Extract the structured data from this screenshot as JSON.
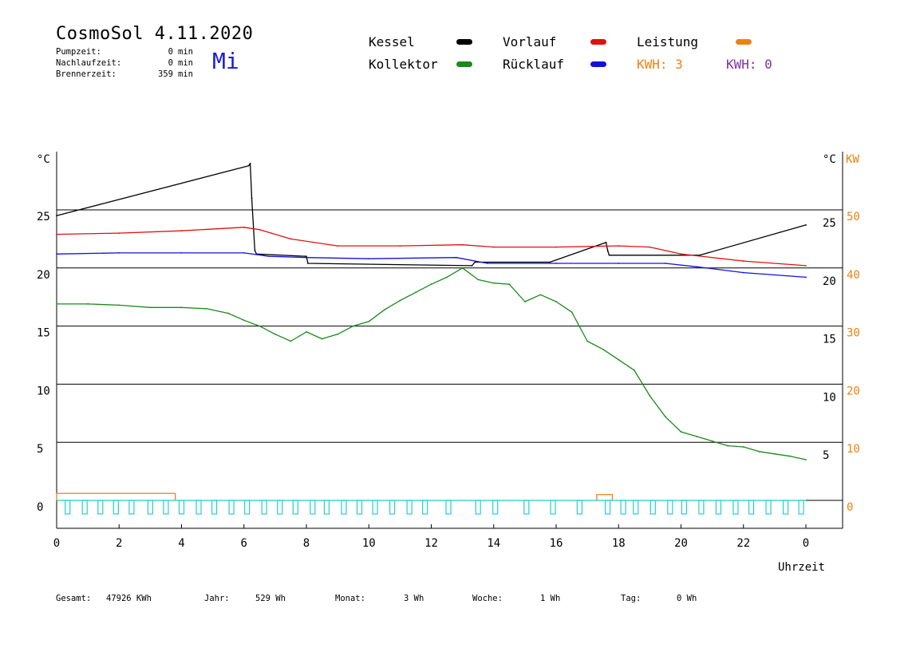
{
  "header": {
    "title": "CosmoSol 4.11.2020",
    "weekday": "Mi",
    "stats": [
      {
        "label": "Pumpzeit:",
        "value": "0",
        "unit": "min"
      },
      {
        "label": "Nachlaufzeit:",
        "value": "0",
        "unit": "min"
      },
      {
        "label": "Brennerzeit:",
        "value": "359",
        "unit": "min"
      }
    ]
  },
  "legend": {
    "kessel": "Kessel",
    "kollektor": "Kollektor",
    "vorlauf": "Vorlauf",
    "ruecklauf": "Rücklauf",
    "leistung": "Leistung",
    "kwh1": "KWH: 3",
    "kwh2": "KWH: 0",
    "colors": {
      "kessel": "#000000",
      "kollektor": "#1a8a1a",
      "vorlauf": "#e01010",
      "ruecklauf": "#1010e0",
      "leistung": "#f08010",
      "kwh1": "#f08010",
      "kwh2": "#8030a0",
      "pump": "#20d0d0"
    }
  },
  "chart_data": {
    "type": "line",
    "xlabel": "Uhrzeit",
    "ylabel_left": "°C",
    "ylabel_right_temp": "°C",
    "ylabel_right_power": "KW",
    "xlim": [
      0,
      24
    ],
    "ylim": [
      -2,
      29
    ],
    "x_ticks": [
      "0",
      "2",
      "4",
      "6",
      "8",
      "10",
      "12",
      "14",
      "16",
      "18",
      "20",
      "22",
      "0"
    ],
    "y_ticks_left": [
      "25",
      "20",
      "15",
      "10",
      "5",
      "0"
    ],
    "y_ticks_right_temp": [
      "25",
      "20",
      "15",
      "10",
      "5"
    ],
    "y_ticks_right_power": [
      "50",
      "40",
      "30",
      "20",
      "10",
      "0"
    ],
    "grid": "horizontal",
    "series": [
      {
        "name": "Kessel",
        "color": "#000000",
        "x": [
          0,
          6.15,
          6.2,
          6.25,
          6.35,
          6.4,
          8.0,
          8.05,
          13.3,
          13.4,
          15.8,
          17.6,
          17.65,
          17.7,
          20.6,
          24.0
        ],
        "y": [
          24.5,
          28.8,
          29.0,
          26.0,
          21.5,
          21.2,
          21.0,
          20.4,
          20.2,
          20.5,
          20.5,
          22.2,
          21.5,
          21.1,
          21.1,
          23.7
        ]
      },
      {
        "name": "Vorlauf",
        "color": "#e01010",
        "x": [
          0,
          2,
          4,
          6,
          6.5,
          7.5,
          9,
          11,
          13,
          14,
          16,
          18,
          19,
          20,
          22,
          24
        ],
        "y": [
          22.9,
          23.0,
          23.2,
          23.5,
          23.3,
          22.5,
          21.9,
          21.9,
          22.0,
          21.8,
          21.8,
          21.9,
          21.8,
          21.2,
          20.6,
          20.2
        ]
      },
      {
        "name": "Rücklauf",
        "color": "#1010e0",
        "x": [
          0,
          2,
          4,
          6,
          6.8,
          8,
          10,
          12.8,
          13.8,
          16,
          18,
          19.5,
          20.5,
          22,
          24
        ],
        "y": [
          21.2,
          21.3,
          21.3,
          21.3,
          21.0,
          20.9,
          20.8,
          20.9,
          20.4,
          20.4,
          20.4,
          20.4,
          20.1,
          19.6,
          19.2
        ]
      },
      {
        "name": "Kollektor",
        "color": "#1a8a1a",
        "x": [
          0,
          1,
          2,
          3,
          4,
          4.8,
          5.5,
          6,
          6.5,
          7,
          7.5,
          8,
          8.5,
          9,
          9.5,
          10,
          10.5,
          11,
          11.5,
          12,
          12.5,
          13,
          13.5,
          14,
          14.5,
          15,
          15.5,
          16,
          16.5,
          17,
          17.5,
          18,
          18.5,
          19,
          19.5,
          20,
          20.5,
          21,
          21.5,
          22,
          22.5,
          23,
          23.5,
          24
        ],
        "y": [
          16.9,
          16.9,
          16.8,
          16.6,
          16.6,
          16.5,
          16.1,
          15.5,
          15.0,
          14.3,
          13.7,
          14.5,
          13.9,
          14.3,
          15.0,
          15.4,
          16.4,
          17.2,
          17.9,
          18.6,
          19.2,
          20.0,
          19.0,
          18.7,
          18.6,
          17.1,
          17.7,
          17.1,
          16.2,
          13.7,
          13.0,
          12.1,
          11.2,
          9.0,
          7.2,
          5.9,
          5.5,
          5.1,
          4.7,
          4.6,
          4.2,
          4.0,
          3.8,
          3.5
        ]
      }
    ],
    "power": {
      "name": "Leistung",
      "color": "#f08010",
      "segments": [
        {
          "from": 0,
          "to": 3.8,
          "kw": 1.2
        },
        {
          "from": 17.3,
          "to": 17.8,
          "kw": 1.0
        }
      ]
    },
    "pump_pulses_hours": [
      0.35,
      0.9,
      1.4,
      1.9,
      2.4,
      3.0,
      3.5,
      4.0,
      4.55,
      5.05,
      5.6,
      6.1,
      6.65,
      7.15,
      7.65,
      8.2,
      8.65,
      9.2,
      9.7,
      10.2,
      10.75,
      11.3,
      11.8,
      12.55,
      13.5,
      14.05,
      15.05,
      15.9,
      16.75,
      17.65,
      18.15,
      18.55,
      19.1,
      19.65,
      20.1,
      20.65,
      21.2,
      21.75,
      22.25,
      22.8,
      23.35,
      23.85
    ]
  },
  "footer": {
    "gesamt_label": "Gesamt:",
    "gesamt_value": "47926 KWh",
    "jahr_label": "Jahr:",
    "jahr_value": "529 Wh",
    "monat_label": "Monat:",
    "monat_value": "3 Wh",
    "woche_label": "Woche:",
    "woche_value": "1 Wh",
    "tag_label": "Tag:",
    "tag_value": "0 Wh"
  }
}
